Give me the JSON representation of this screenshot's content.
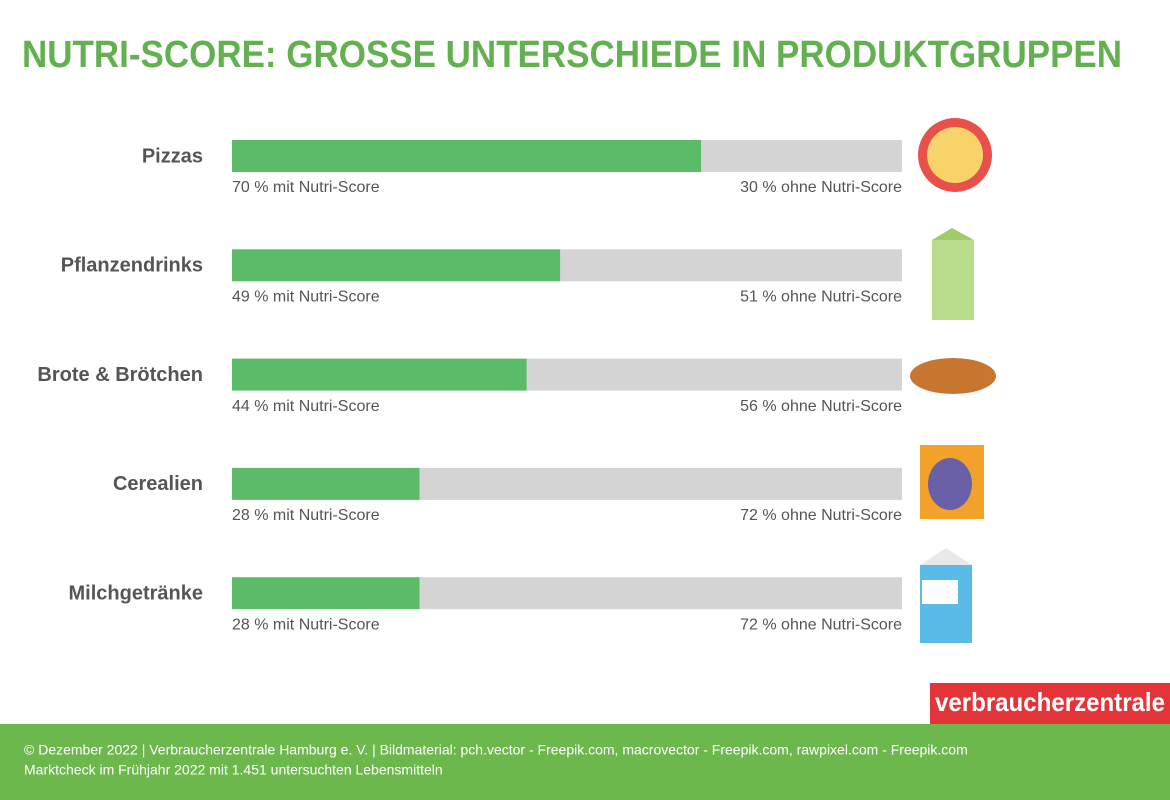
{
  "chart_data": {
    "type": "stacked-bar",
    "title": "NUTRI-SCORE: GROSSE UNTERSCHIEDE IN PRODUKTGRUPPEN",
    "categories": [
      "Pizzas",
      "Pflanzendrinks",
      "Brote & Brötchen",
      "Cerealien",
      "Milchgetränke"
    ],
    "series": [
      {
        "color": "#5cbb68",
        "values": [
          70,
          49,
          44,
          28,
          28
        ],
        "value_labels": [
          "70 % mit Nutri-Score",
          "49 % mit Nutri-Score",
          "44 % mit Nutri-Score",
          "28 % mit Nutri-Score",
          "28 % mit Nutri-Score"
        ]
      },
      {
        "color": "#d4d4d4",
        "values": [
          30,
          51,
          56,
          72,
          72
        ],
        "value_labels": [
          "30 % ohne Nutri-Score",
          "51 % ohne Nutri-Score",
          "56 % ohne Nutri-Score",
          "72 % ohne Nutri-Score",
          "72 % ohne Nutri-Score"
        ]
      }
    ],
    "xlim": [
      0,
      100
    ]
  },
  "logo": "verbraucherzentrale",
  "footer": [
    "© Dezember 2022 | Verbraucherzentrale Hamburg e. V. | Bildmaterial: pch.vector - Freepik.com, macrovector - Freepik.com, rawpixel.com - Freepik.com",
    "Marktcheck im Frühjahr 2022 mit 1.451 untersuchten Lebensmitteln"
  ]
}
